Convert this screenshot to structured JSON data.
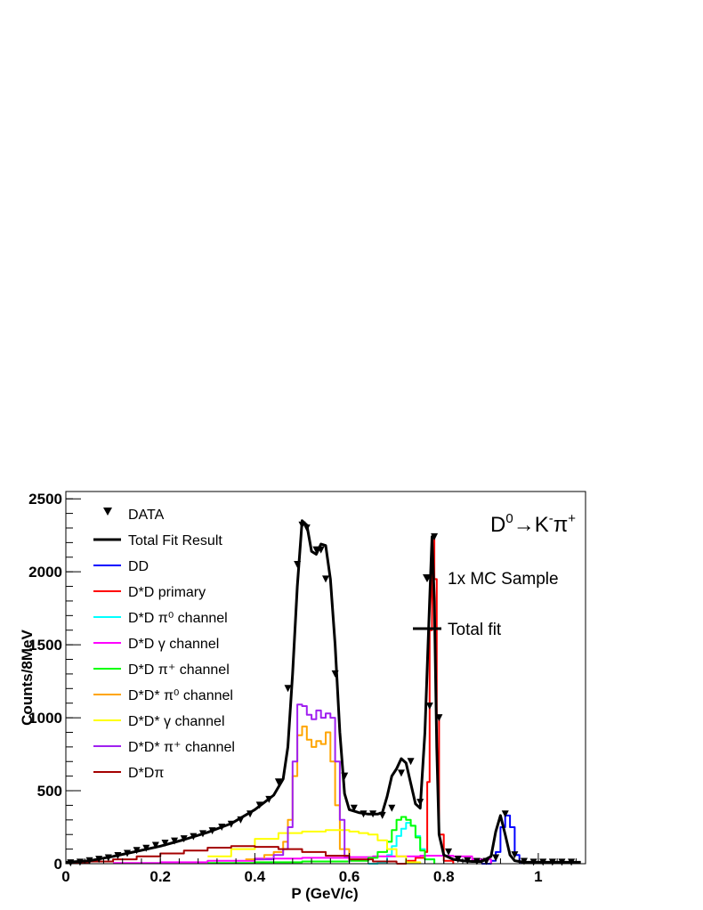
{
  "chart_data": {
    "type": "line",
    "xlabel": "P (GeV/c)",
    "ylabel": "Counts/8MeV",
    "xlim": [
      0,
      1.1
    ],
    "ylim": [
      0,
      2550
    ],
    "x_ticks": [
      0,
      0.2,
      0.4,
      0.6,
      0.8,
      1
    ],
    "x_tick_labels": [
      "0",
      "0.2",
      "0.4",
      "0.6",
      "0.8",
      "1"
    ],
    "y_ticks": [
      0,
      500,
      1000,
      1500,
      2000,
      2500
    ],
    "y_tick_labels": [
      "0",
      "500",
      "1000",
      "1500",
      "2000",
      "2500"
    ],
    "decay_label": "D⁰→K⁻π⁺",
    "decay_parts": {
      "d": "D",
      "d_sup": "0",
      "arrow": "→",
      "k": "K",
      "k_sup": "-",
      "pi": "π",
      "pi_sup": "+"
    },
    "mc_legend": {
      "marker_label": "1x MC Sample",
      "line_label": "Total fit"
    },
    "legend": [
      {
        "label": "DATA",
        "color": "#000000",
        "kind": "marker"
      },
      {
        "label": "Total Fit Result",
        "color": "#000000",
        "kind": "thick"
      },
      {
        "label": "DD",
        "color": "#0000ff",
        "kind": "line"
      },
      {
        "label": "D*D primary",
        "color": "#ff0000",
        "kind": "line"
      },
      {
        "label": "D*D π⁰ channel",
        "color": "#00ffff",
        "kind": "line"
      },
      {
        "label": "D*D γ channel",
        "color": "#ff00ff",
        "kind": "line"
      },
      {
        "label": "D*D π⁺ channel",
        "color": "#00ff00",
        "kind": "line"
      },
      {
        "label": "D*D* π⁰ channel",
        "color": "#ffa500",
        "kind": "line"
      },
      {
        "label": "D*D* γ channel",
        "color": "#ffff00",
        "kind": "line"
      },
      {
        "label": "D*D* π⁺ channel",
        "color": "#a020f0",
        "kind": "line"
      },
      {
        "label": "D*Dπ",
        "color": "#a50000",
        "kind": "line"
      }
    ],
    "data_points": {
      "x": [
        0.01,
        0.03,
        0.05,
        0.07,
        0.09,
        0.11,
        0.13,
        0.15,
        0.17,
        0.19,
        0.21,
        0.23,
        0.25,
        0.27,
        0.29,
        0.31,
        0.33,
        0.35,
        0.37,
        0.39,
        0.41,
        0.43,
        0.45,
        0.47,
        0.49,
        0.5,
        0.51,
        0.53,
        0.54,
        0.55,
        0.57,
        0.59,
        0.61,
        0.63,
        0.65,
        0.67,
        0.69,
        0.71,
        0.73,
        0.75,
        0.77,
        0.78,
        0.79,
        0.81,
        0.83,
        0.85,
        0.87,
        0.89,
        0.91,
        0.93,
        0.95,
        0.97,
        0.99,
        1.01,
        1.03,
        1.05,
        1.07
      ],
      "y": [
        5,
        10,
        20,
        30,
        40,
        55,
        70,
        90,
        105,
        125,
        140,
        155,
        170,
        185,
        205,
        225,
        250,
        270,
        300,
        340,
        400,
        440,
        560,
        1200,
        2050,
        2320,
        2300,
        2150,
        2150,
        1950,
        1300,
        600,
        380,
        340,
        340,
        330,
        380,
        620,
        700,
        420,
        1080,
        2240,
        1000,
        80,
        30,
        20,
        15,
        15,
        40,
        340,
        60,
        15,
        10,
        10,
        10,
        10,
        10
      ]
    },
    "series": [
      {
        "name": "Total Fit Result",
        "color": "#000000",
        "width": 3,
        "step": false,
        "x": [
          0.0,
          0.05,
          0.1,
          0.15,
          0.2,
          0.25,
          0.3,
          0.35,
          0.4,
          0.42,
          0.44,
          0.46,
          0.47,
          0.48,
          0.49,
          0.5,
          0.51,
          0.52,
          0.53,
          0.54,
          0.55,
          0.56,
          0.57,
          0.58,
          0.59,
          0.6,
          0.62,
          0.64,
          0.66,
          0.67,
          0.68,
          0.69,
          0.7,
          0.71,
          0.72,
          0.73,
          0.74,
          0.75,
          0.76,
          0.77,
          0.775,
          0.78,
          0.785,
          0.79,
          0.8,
          0.82,
          0.84,
          0.86,
          0.88,
          0.9,
          0.91,
          0.92,
          0.93,
          0.94,
          0.95,
          0.97,
          1.0,
          1.05,
          1.09
        ],
        "y": [
          10,
          20,
          50,
          85,
          120,
          165,
          215,
          275,
          370,
          420,
          470,
          580,
          800,
          1300,
          1900,
          2350,
          2320,
          2140,
          2120,
          2190,
          2180,
          1950,
          1500,
          900,
          480,
          370,
          350,
          340,
          340,
          350,
          460,
          600,
          650,
          720,
          690,
          550,
          410,
          380,
          900,
          1800,
          2240,
          1800,
          800,
          200,
          60,
          30,
          20,
          15,
          15,
          50,
          220,
          330,
          200,
          60,
          20,
          10,
          10,
          10,
          10
        ]
      },
      {
        "name": "DD",
        "color": "#0000ff",
        "width": 2,
        "step": true,
        "x": [
          0.88,
          0.9,
          0.91,
          0.92,
          0.93,
          0.94,
          0.95,
          0.96,
          0.98
        ],
        "y": [
          0,
          20,
          80,
          250,
          330,
          250,
          60,
          10,
          0
        ]
      },
      {
        "name": "D*D primary",
        "color": "#ff0000",
        "width": 2,
        "step": true,
        "x": [
          0.7,
          0.72,
          0.74,
          0.76,
          0.765,
          0.77,
          0.775,
          0.78,
          0.785,
          0.79,
          0.8,
          0.82
        ],
        "y": [
          0,
          20,
          40,
          80,
          560,
          1600,
          2240,
          1950,
          1000,
          200,
          20,
          0
        ]
      },
      {
        "name": "D*D π⁰ channel",
        "color": "#00ffff",
        "width": 2,
        "step": true,
        "x": [
          0.64,
          0.66,
          0.68,
          0.69,
          0.7,
          0.71,
          0.72,
          0.73,
          0.74,
          0.75,
          0.76,
          0.78
        ],
        "y": [
          0,
          10,
          60,
          120,
          190,
          240,
          280,
          260,
          190,
          100,
          30,
          0
        ]
      },
      {
        "name": "D*D γ channel",
        "color": "#ff00ff",
        "width": 2,
        "step": true,
        "x": [
          0.1,
          0.2,
          0.3,
          0.4,
          0.5,
          0.6,
          0.65,
          0.7,
          0.75,
          0.78,
          0.82,
          0.86,
          0.9
        ],
        "y": [
          5,
          10,
          20,
          35,
          40,
          45,
          50,
          50,
          55,
          55,
          50,
          30,
          0
        ]
      },
      {
        "name": "D*D π⁺ channel",
        "color": "#00ff00",
        "width": 2,
        "step": true,
        "x": [
          0.3,
          0.4,
          0.5,
          0.6,
          0.64,
          0.66,
          0.68,
          0.69,
          0.7,
          0.71,
          0.72,
          0.73,
          0.74,
          0.75,
          0.76,
          0.78
        ],
        "y": [
          5,
          10,
          15,
          20,
          40,
          80,
          150,
          230,
          300,
          320,
          300,
          260,
          180,
          90,
          30,
          0
        ]
      },
      {
        "name": "D*D* π⁰ channel",
        "color": "#ffa500",
        "width": 2,
        "step": true,
        "x": [
          0.38,
          0.42,
          0.44,
          0.46,
          0.47,
          0.48,
          0.49,
          0.5,
          0.51,
          0.52,
          0.53,
          0.54,
          0.55,
          0.56,
          0.57,
          0.58,
          0.6
        ],
        "y": [
          30,
          60,
          80,
          150,
          300,
          600,
          880,
          940,
          850,
          800,
          840,
          820,
          900,
          700,
          400,
          100,
          20
        ]
      },
      {
        "name": "D*D* γ channel",
        "color": "#ffff00",
        "width": 2,
        "step": true,
        "x": [
          0.3,
          0.35,
          0.4,
          0.45,
          0.5,
          0.55,
          0.6,
          0.62,
          0.64,
          0.66,
          0.68,
          0.7,
          0.72,
          0.75
        ],
        "y": [
          50,
          100,
          170,
          210,
          220,
          230,
          220,
          210,
          200,
          160,
          100,
          50,
          10,
          0
        ]
      },
      {
        "name": "D*D* π⁺ channel",
        "color": "#a020f0",
        "width": 2,
        "step": true,
        "x": [
          0.4,
          0.44,
          0.46,
          0.47,
          0.48,
          0.49,
          0.5,
          0.51,
          0.52,
          0.53,
          0.54,
          0.55,
          0.56,
          0.57,
          0.58,
          0.59,
          0.6
        ],
        "y": [
          30,
          60,
          100,
          250,
          700,
          1090,
          1080,
          1020,
          990,
          1050,
          1000,
          1030,
          1000,
          700,
          300,
          50,
          10
        ]
      },
      {
        "name": "D*Dπ",
        "color": "#a50000",
        "width": 2,
        "step": true,
        "x": [
          0.0,
          0.05,
          0.1,
          0.15,
          0.2,
          0.25,
          0.3,
          0.35,
          0.4,
          0.45,
          0.5,
          0.55,
          0.6,
          0.65,
          0.7
        ],
        "y": [
          5,
          15,
          30,
          50,
          70,
          90,
          110,
          120,
          115,
          100,
          80,
          55,
          30,
          15,
          5
        ]
      }
    ]
  }
}
